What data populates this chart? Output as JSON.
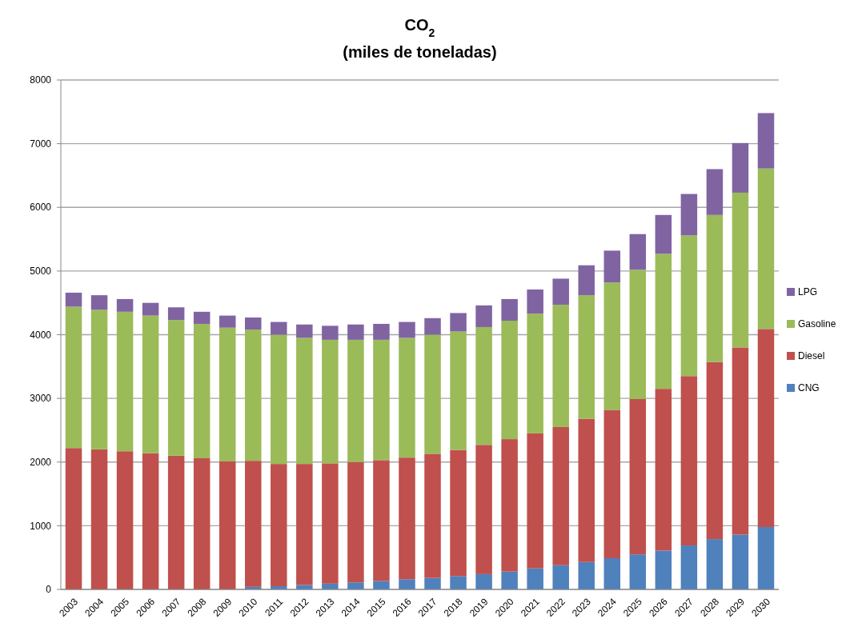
{
  "chart_data": {
    "type": "bar",
    "title": "CO$_{2}$",
    "subtitle": "(miles de toneladas)",
    "stacked": true,
    "categories": [
      "2003",
      "2004",
      "2005",
      "2006",
      "2007",
      "2008",
      "2009",
      "2010",
      "2011",
      "2012",
      "2013",
      "2014",
      "2015",
      "2016",
      "2017",
      "2018",
      "2019",
      "2020",
      "2021",
      "2022",
      "2023",
      "2024",
      "2025",
      "2026",
      "2027",
      "2028",
      "2029",
      "2030"
    ],
    "series": [
      {
        "name": "CNG",
        "color": "#4f81bd",
        "values": [
          0,
          0,
          0,
          0,
          null,
          null,
          null,
          40,
          50,
          70,
          90,
          110,
          130,
          160,
          180,
          210,
          240,
          280,
          330,
          380,
          430,
          490,
          550,
          610,
          690,
          790,
          860,
          980
        ]
      },
      {
        "name": "Diesel",
        "color": "#c0504d",
        "values": [
          2220,
          2200,
          2170,
          2140,
          2100,
          2060,
          2010,
          1980,
          1920,
          1900,
          1890,
          1890,
          1900,
          1910,
          1950,
          1980,
          2030,
          2080,
          2120,
          2170,
          2250,
          2330,
          2440,
          2540,
          2660,
          2780,
          2940,
          3110
        ]
      },
      {
        "name": "Gasoline",
        "color": "#9bbb59",
        "values": [
          2220,
          2190,
          2190,
          2160,
          2130,
          2110,
          2100,
          2060,
          2030,
          1980,
          1940,
          1920,
          1890,
          1880,
          1870,
          1860,
          1850,
          1860,
          1880,
          1920,
          1940,
          2000,
          2030,
          2120,
          2210,
          2310,
          2430,
          2520
        ]
      },
      {
        "name": "LPG",
        "color": "#8064a2",
        "values": [
          220,
          230,
          200,
          200,
          200,
          190,
          190,
          190,
          200,
          210,
          220,
          240,
          250,
          250,
          260,
          290,
          340,
          340,
          380,
          410,
          470,
          500,
          560,
          610,
          650,
          720,
          780,
          870
        ]
      }
    ],
    "ylim": [
      0,
      8000
    ],
    "yticks": [
      0,
      1000,
      2000,
      3000,
      4000,
      5000,
      6000,
      7000,
      8000
    ],
    "grid": "y",
    "legend": "right"
  }
}
